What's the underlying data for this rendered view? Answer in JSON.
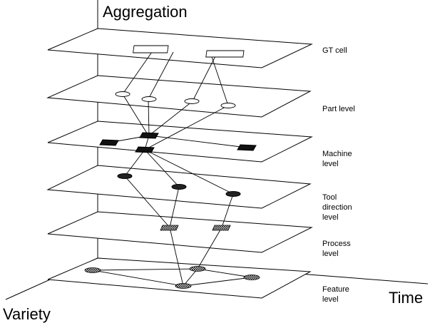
{
  "axes": {
    "aggregation": "Aggregation",
    "variety": "Variety",
    "time": "Time"
  },
  "levels": [
    {
      "id": "gt-cell",
      "lines": [
        "GT cell"
      ]
    },
    {
      "id": "part",
      "lines": [
        "Part level"
      ]
    },
    {
      "id": "machine",
      "lines": [
        "Machine",
        "level"
      ]
    },
    {
      "id": "tool-direction",
      "lines": [
        "Tool",
        "direction",
        "level"
      ]
    },
    {
      "id": "process",
      "lines": [
        "Process",
        "level"
      ]
    },
    {
      "id": "feature",
      "lines": [
        "Feature",
        "level"
      ]
    }
  ],
  "colors": {
    "line": "#000000",
    "background": "#ffffff",
    "dark_node": "#111111",
    "hatched_node": "#888888"
  }
}
